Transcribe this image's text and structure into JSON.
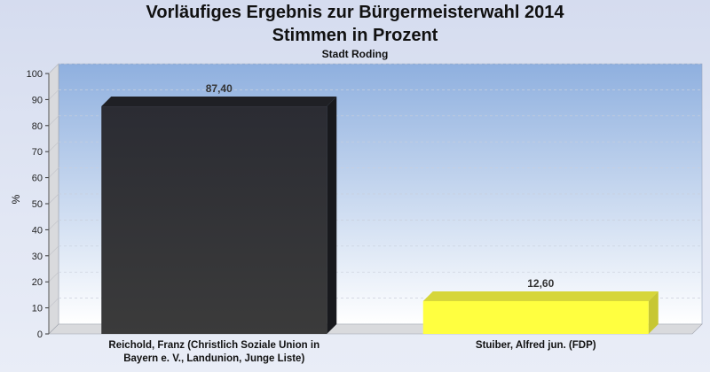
{
  "title": "Vorläufiges Ergebnis zur Bürgermeisterwahl 2014",
  "subtitle": "Stimmen in Prozent",
  "place": "Stadt Roding",
  "colors": {
    "bar1": "#2f3035",
    "bar2": "#ffff40",
    "plot_top": "#8fb0df",
    "plot_bottom": "#ffffff"
  },
  "chart_data": {
    "type": "bar",
    "title": "Vorläufiges Ergebnis zur Bürgermeisterwahl 2014",
    "subtitle": "Stimmen in Prozent",
    "ylabel": "%",
    "ylim": [
      0,
      100
    ],
    "yticks": [
      "0",
      "10",
      "20",
      "30",
      "40",
      "50",
      "60",
      "70",
      "80",
      "90",
      "100"
    ],
    "grid": true,
    "categories": [
      [
        "Reichold, Franz (Christlich Soziale Union in",
        "Bayern e. V., Landunion, Junge Liste)"
      ],
      [
        "Stuiber, Alfred jun. (FDP)"
      ]
    ],
    "values": [
      87.4,
      12.6
    ],
    "value_labels": [
      "87,40",
      "12,60"
    ],
    "colors": [
      "#2f3035",
      "#ffff40"
    ]
  }
}
